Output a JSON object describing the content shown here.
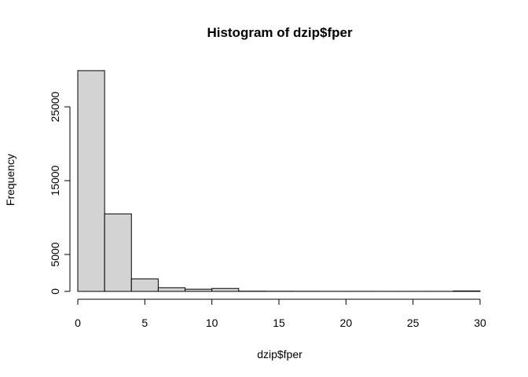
{
  "chart_data": {
    "type": "bar",
    "title": "Histogram of dzip$fper",
    "xlabel": "dzip$fper",
    "ylabel": "Frequency",
    "xlim": [
      0,
      30
    ],
    "ylim": [
      0,
      30000
    ],
    "x_ticks": [
      0,
      5,
      10,
      15,
      20,
      25,
      30
    ],
    "y_ticks": [
      0,
      5000,
      15000,
      25000
    ],
    "grid": false,
    "bins": [
      {
        "start": 0,
        "end": 2,
        "count": 29900
      },
      {
        "start": 2,
        "end": 4,
        "count": 10500
      },
      {
        "start": 4,
        "end": 6,
        "count": 1700
      },
      {
        "start": 6,
        "end": 8,
        "count": 500
      },
      {
        "start": 8,
        "end": 10,
        "count": 300
      },
      {
        "start": 10,
        "end": 12,
        "count": 400
      },
      {
        "start": 12,
        "end": 14,
        "count": 30
      },
      {
        "start": 14,
        "end": 16,
        "count": 20
      },
      {
        "start": 16,
        "end": 18,
        "count": 15
      },
      {
        "start": 18,
        "end": 20,
        "count": 10
      },
      {
        "start": 20,
        "end": 22,
        "count": 10
      },
      {
        "start": 22,
        "end": 24,
        "count": 8
      },
      {
        "start": 24,
        "end": 26,
        "count": 8
      },
      {
        "start": 26,
        "end": 28,
        "count": 10
      },
      {
        "start": 28,
        "end": 30,
        "count": 60
      }
    ],
    "colors": {
      "bar_fill": "#d3d3d3",
      "bar_stroke": "#000000"
    }
  }
}
